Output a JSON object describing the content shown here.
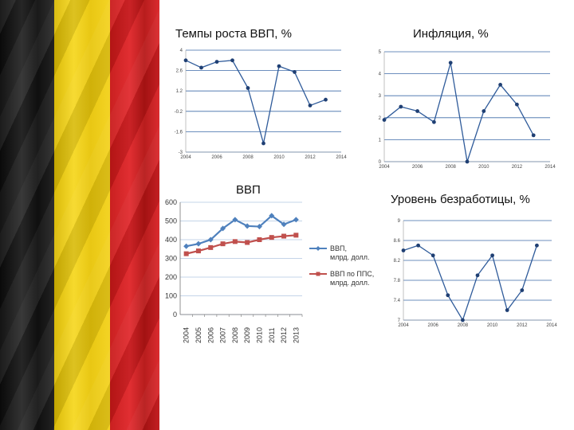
{
  "chart_data": [
    {
      "type": "line",
      "title": "Темпы роста ВВП, %",
      "x": [
        2004,
        2005,
        2006,
        2007,
        2008,
        2009,
        2010,
        2011,
        2012,
        2013,
        2014
      ],
      "series": [
        {
          "values": [
            3.3,
            2.8,
            3.2,
            3.3,
            1.4,
            -2.4,
            2.9,
            2.5,
            0.2,
            0.6,
            null
          ]
        }
      ],
      "ylim": [
        -3,
        4
      ],
      "yticks": [
        "-3",
        "-1.6",
        "-0.2",
        "1.2",
        "2.6",
        "4"
      ],
      "xlabel": "",
      "ylabel": "",
      "color": "#2f5b9a",
      "grid": true
    },
    {
      "type": "line",
      "title": "Инфляция, %",
      "x": [
        2004,
        2005,
        2006,
        2007,
        2008,
        2009,
        2010,
        2011,
        2012,
        2013,
        2014
      ],
      "series": [
        {
          "values": [
            1.9,
            2.5,
            2.3,
            1.8,
            4.5,
            0.0,
            2.3,
            3.5,
            2.6,
            1.2,
            null
          ]
        }
      ],
      "ylim": [
        0,
        5
      ],
      "yticks": [
        "0",
        "1",
        "2",
        "3",
        "4",
        "5"
      ],
      "xlabel": "",
      "ylabel": "",
      "color": "#2f5b9a",
      "grid": true
    },
    {
      "type": "line",
      "title": "ВВП",
      "categories": [
        "2004",
        "2005",
        "2006",
        "2007",
        "2008",
        "2009",
        "2010",
        "2011",
        "2012",
        "2013"
      ],
      "series": [
        {
          "name": "ВВП, млрд. долл.",
          "values": [
            365,
            378,
            400,
            460,
            507,
            473,
            470,
            528,
            482,
            507
          ],
          "color": "#4f81bd",
          "marker": "diamond"
        },
        {
          "name": "ВВП по ППС, млрд. долл.",
          "values": [
            325,
            340,
            358,
            378,
            390,
            385,
            400,
            412,
            419,
            424
          ],
          "color": "#c0504d",
          "marker": "square"
        }
      ],
      "ylim": [
        0,
        600
      ],
      "yticks": [
        "0",
        "100",
        "200",
        "300",
        "400",
        "500",
        "600"
      ],
      "legend": "right",
      "grid": true
    },
    {
      "type": "line",
      "title": "Уровень безработицы, %",
      "x": [
        2004,
        2005,
        2006,
        2007,
        2008,
        2009,
        2010,
        2011,
        2012,
        2013,
        2014
      ],
      "series": [
        {
          "values": [
            8.4,
            8.5,
            8.3,
            7.5,
            7.0,
            7.9,
            8.3,
            7.2,
            7.6,
            8.5,
            null
          ]
        }
      ],
      "ylim": [
        7,
        9
      ],
      "yticks": [
        "7",
        "7.4",
        "7.8",
        "8.2",
        "8.6",
        "9"
      ],
      "xlabel": "",
      "ylabel": "",
      "color": "#2f5b9a",
      "grid": true
    }
  ]
}
